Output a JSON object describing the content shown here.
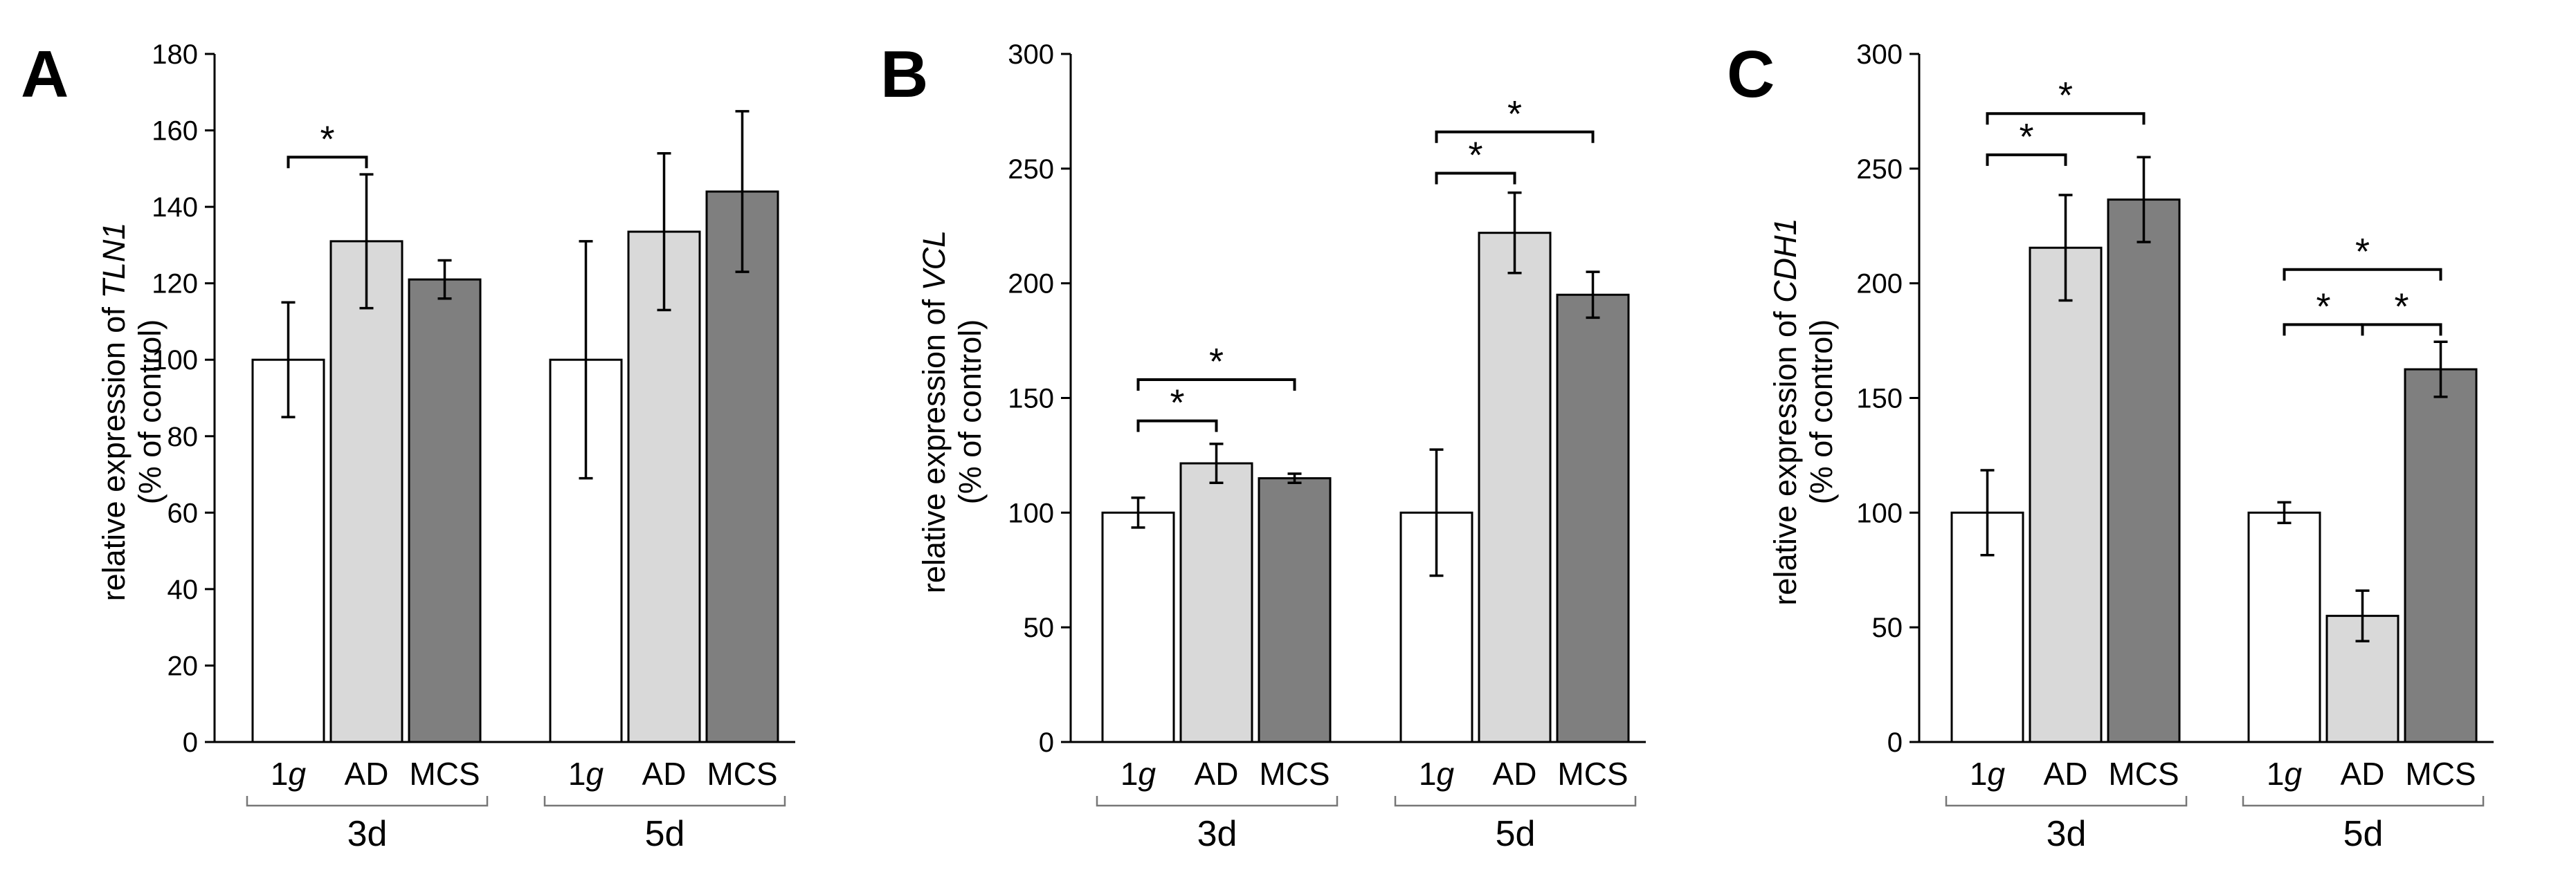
{
  "colors": {
    "1g": "#ffffff",
    "AD": "#d9d9d9",
    "MCS": "#7f7f7f",
    "stroke": "#000000"
  },
  "chart_data": [
    {
      "type": "bar",
      "panel": "A",
      "ylabel_prefix": "relative expression of ",
      "ylabel_gene": "TLN1",
      "ylabel_line2": "(% of control)",
      "ylim": [
        0,
        180
      ],
      "yticks": [
        0,
        20,
        40,
        60,
        80,
        100,
        120,
        140,
        160,
        180
      ],
      "groups": [
        "3d",
        "5d"
      ],
      "categories": [
        {
          "label": "1",
          "italic_suffix": "g"
        },
        {
          "label": "AD",
          "italic_suffix": ""
        },
        {
          "label": "MCS",
          "italic_suffix": ""
        }
      ],
      "series": [
        {
          "group": "3d",
          "values": [
            100,
            131,
            121
          ],
          "errors": [
            15,
            17.5,
            5
          ]
        },
        {
          "group": "5d",
          "values": [
            100,
            133.5,
            144
          ],
          "errors": [
            31,
            20.5,
            21
          ]
        }
      ],
      "significance": [
        {
          "group": 0,
          "from": 0,
          "to": 1,
          "y": 153,
          "label": "*"
        }
      ]
    },
    {
      "type": "bar",
      "panel": "B",
      "ylabel_prefix": "relative expression of ",
      "ylabel_gene": "VCL",
      "ylabel_line2": "(% of control)",
      "ylim": [
        0,
        300
      ],
      "yticks": [
        0,
        50,
        100,
        150,
        200,
        250,
        300
      ],
      "groups": [
        "3d",
        "5d"
      ],
      "categories": [
        {
          "label": "1",
          "italic_suffix": "g"
        },
        {
          "label": "AD",
          "italic_suffix": ""
        },
        {
          "label": "MCS",
          "italic_suffix": ""
        }
      ],
      "series": [
        {
          "group": "3d",
          "values": [
            100,
            121.5,
            115
          ],
          "errors": [
            6.5,
            8.5,
            2
          ]
        },
        {
          "group": "5d",
          "values": [
            100,
            222,
            195
          ],
          "errors": [
            27.5,
            17.5,
            10
          ]
        }
      ],
      "significance": [
        {
          "group": 0,
          "from": 0,
          "to": 1,
          "y": 140,
          "label": "*"
        },
        {
          "group": 0,
          "from": 0,
          "to": 2,
          "y": 158,
          "label": "*"
        },
        {
          "group": 1,
          "from": 0,
          "to": 1,
          "y": 248,
          "label": "*"
        },
        {
          "group": 1,
          "from": 0,
          "to": 2,
          "y": 266,
          "label": "*"
        }
      ]
    },
    {
      "type": "bar",
      "panel": "C",
      "ylabel_prefix": "relative expression of ",
      "ylabel_gene": "CDH1",
      "ylabel_line2": "(% of control)",
      "ylim": [
        0,
        300
      ],
      "yticks": [
        0,
        50,
        100,
        150,
        200,
        250,
        300
      ],
      "groups": [
        "3d",
        "5d"
      ],
      "categories": [
        {
          "label": "1",
          "italic_suffix": "g"
        },
        {
          "label": "AD",
          "italic_suffix": ""
        },
        {
          "label": "MCS",
          "italic_suffix": ""
        }
      ],
      "series": [
        {
          "group": "3d",
          "values": [
            100,
            215.5,
            236.5
          ],
          "errors": [
            18.5,
            23,
            18.5
          ]
        },
        {
          "group": "5d",
          "values": [
            100,
            55,
            162.5
          ],
          "errors": [
            4.5,
            11,
            12
          ]
        }
      ],
      "significance": [
        {
          "group": 0,
          "from": 0,
          "to": 1,
          "y": 256,
          "label": "*"
        },
        {
          "group": 0,
          "from": 0,
          "to": 2,
          "y": 274,
          "label": "*"
        },
        {
          "group": 1,
          "from": 0,
          "to": 1,
          "y": 182,
          "label": "*",
          "tick_to": false
        },
        {
          "group": 1,
          "from": 1,
          "to": 2,
          "y": 182,
          "label": "*"
        },
        {
          "group": 1,
          "from": 0,
          "to": 2,
          "y": 206,
          "label": "*"
        }
      ]
    }
  ]
}
